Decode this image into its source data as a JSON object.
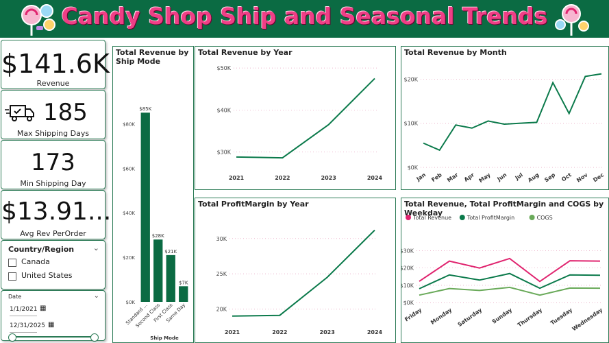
{
  "header": {
    "title": "Candy Shop Ship and Seasonal Trends"
  },
  "kpis": {
    "revenue": {
      "value": "$141.6K",
      "label": "Revenue"
    },
    "max_ship": {
      "value": "185",
      "label": "Max Shipping Days",
      "icon": "truck-icon"
    },
    "min_ship": {
      "value": "173",
      "label": "Min Shipping Day"
    },
    "avg_rev": {
      "value": "$13.91...",
      "label": "Avg Rev PerOrder"
    }
  },
  "slicer_country": {
    "title": "Country/Region",
    "options": [
      "Canada",
      "United States"
    ]
  },
  "slicer_date": {
    "title": "Date",
    "start": "1/1/2021",
    "end": "12/31/2025"
  },
  "colors": {
    "accent": "#0b6b43",
    "line": "#0b7a4b",
    "pink": "#e0246f",
    "light_green": "#6aaa5a",
    "title": "#ef3f86"
  },
  "chart_data": [
    {
      "id": "ship_mode",
      "type": "bar",
      "title": "Total Revenue by Ship Mode",
      "xlabel": "Ship Mode",
      "categories": [
        "Standard ...",
        "Second Class",
        "First Class",
        "Same Day"
      ],
      "values": [
        85,
        28,
        21,
        7
      ],
      "data_labels": [
        "$85K",
        "$28K",
        "$21K",
        "$7K"
      ],
      "yticks": [
        "$0K",
        "$20K",
        "$40K",
        "$60K",
        "$80K"
      ],
      "ylim": [
        0,
        90
      ]
    },
    {
      "id": "rev_year",
      "type": "line",
      "title": "Total Revenue by Year",
      "x": [
        "2021",
        "2022",
        "2023",
        "2024"
      ],
      "values": [
        28.8,
        28.6,
        36.5,
        47.5
      ],
      "yticks": [
        "$30K",
        "$40K",
        "$50K"
      ],
      "ylim": [
        26,
        51
      ]
    },
    {
      "id": "rev_month",
      "type": "line",
      "title": "Total Revenue by Month",
      "x": [
        "Jan",
        "Feb",
        "Mar",
        "Apr",
        "May",
        "Jun",
        "Jul",
        "Aug",
        "Sep",
        "Oct",
        "Nov",
        "Dec"
      ],
      "values": [
        5.5,
        3.9,
        9.6,
        8.9,
        10.5,
        9.8,
        10.0,
        10.2,
        19.2,
        12.2,
        20.6,
        21.2
      ],
      "yticks": [
        "$0K",
        "$10K",
        "$20K"
      ],
      "ylim": [
        0,
        23
      ]
    },
    {
      "id": "profit_year",
      "type": "line",
      "title": "Total ProfitMargin by Year",
      "x": [
        "2021",
        "2022",
        "2023",
        "2024"
      ],
      "values": [
        19.0,
        19.1,
        24.5,
        31.2
      ],
      "yticks": [
        "20K",
        "25K",
        "30K"
      ],
      "ylim": [
        18,
        33
      ]
    },
    {
      "id": "weekday",
      "type": "line",
      "title": "Total Revenue, Total ProfitMargin and COGS by Weekday",
      "x": [
        "Friday",
        "Monday",
        "Saturday",
        "Sunday",
        "Thursday",
        "Tuesday",
        "Wednesday"
      ],
      "series": [
        {
          "name": "Total Revenue",
          "color": "#e0246f",
          "values": [
            12.3,
            24.0,
            20.0,
            25.5,
            12.2,
            24.2,
            24.0
          ]
        },
        {
          "name": "Total ProfitMargin",
          "color": "#0b7a4b",
          "values": [
            8.0,
            16.0,
            13.0,
            16.8,
            8.3,
            16.0,
            15.8
          ]
        },
        {
          "name": "COGS",
          "color": "#6aaa5a",
          "values": [
            4.3,
            8.1,
            7.0,
            8.8,
            4.3,
            8.4,
            8.3
          ]
        }
      ],
      "yticks": [
        "$0K",
        "$10K",
        "$20K",
        "$30K"
      ],
      "ylim": [
        0,
        31
      ]
    }
  ]
}
